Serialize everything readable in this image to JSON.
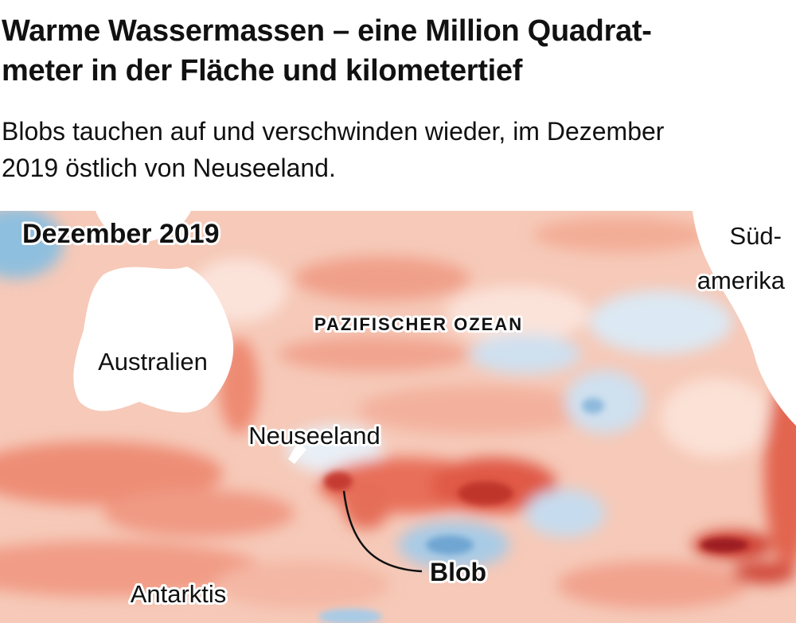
{
  "header": {
    "title_lines": [
      "Warme Wassermassen – eine Million Quadrat-",
      "meter in der Fläche und kilometertief"
    ],
    "subtitle_lines": [
      "Blobs tauchen auf und verschwinden wieder, im Dezember",
      "2019 östlich von Neuseeland."
    ]
  },
  "map": {
    "date_label": "Dezember 2019",
    "labels": {
      "south_america": [
        "Süd-",
        "amerika"
      ],
      "ocean": "PAZIFISCHER OZEAN",
      "australia": "Australien",
      "new_zealand": "Neuseeland",
      "blob": "Blob",
      "antarctica": "Antarktis"
    }
  }
}
